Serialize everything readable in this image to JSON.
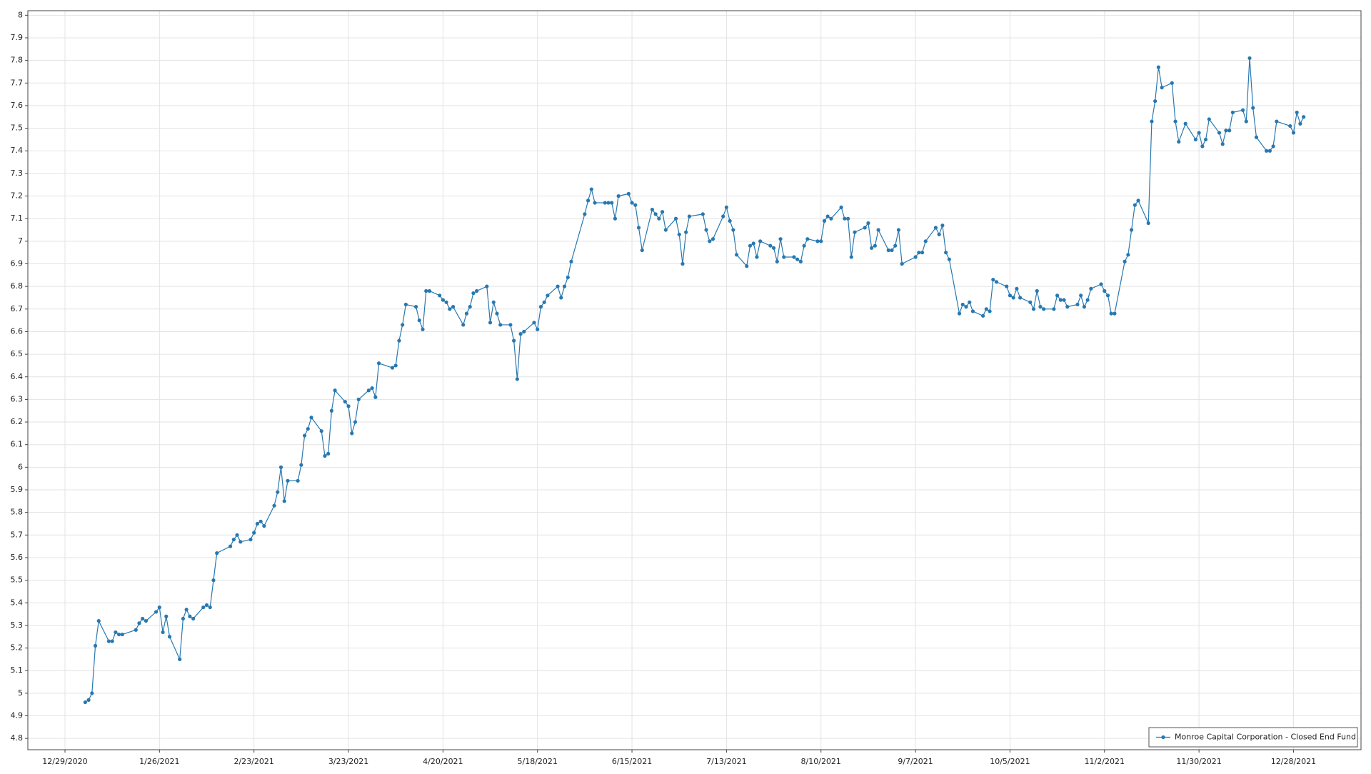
{
  "chart_data": {
    "type": "line",
    "x": [
      "1/4/2021",
      "1/5/2021",
      "1/6/2021",
      "1/7/2021",
      "1/8/2021",
      "1/11/2021",
      "1/12/2021",
      "1/13/2021",
      "1/14/2021",
      "1/15/2021",
      "1/19/2021",
      "1/20/2021",
      "1/21/2021",
      "1/22/2021",
      "1/25/2021",
      "1/26/2021",
      "1/27/2021",
      "1/28/2021",
      "1/29/2021",
      "2/1/2021",
      "2/2/2021",
      "2/3/2021",
      "2/4/2021",
      "2/5/2021",
      "2/8/2021",
      "2/9/2021",
      "2/10/2021",
      "2/11/2021",
      "2/12/2021",
      "2/16/2021",
      "2/17/2021",
      "2/18/2021",
      "2/19/2021",
      "2/22/2021",
      "2/23/2021",
      "2/24/2021",
      "2/25/2021",
      "2/26/2021",
      "3/1/2021",
      "3/2/2021",
      "3/3/2021",
      "3/4/2021",
      "3/5/2021",
      "3/8/2021",
      "3/9/2021",
      "3/10/2021",
      "3/11/2021",
      "3/12/2021",
      "3/15/2021",
      "3/16/2021",
      "3/17/2021",
      "3/18/2021",
      "3/19/2021",
      "3/22/2021",
      "3/23/2021",
      "3/24/2021",
      "3/25/2021",
      "3/26/2021",
      "3/29/2021",
      "3/30/2021",
      "3/31/2021",
      "4/1/2021",
      "4/5/2021",
      "4/6/2021",
      "4/7/2021",
      "4/8/2021",
      "4/9/2021",
      "4/12/2021",
      "4/13/2021",
      "4/14/2021",
      "4/15/2021",
      "4/16/2021",
      "4/19/2021",
      "4/20/2021",
      "4/21/2021",
      "4/22/2021",
      "4/23/2021",
      "4/26/2021",
      "4/27/2021",
      "4/28/2021",
      "4/29/2021",
      "4/30/2021",
      "5/3/2021",
      "5/4/2021",
      "5/5/2021",
      "5/6/2021",
      "5/7/2021",
      "5/10/2021",
      "5/11/2021",
      "5/12/2021",
      "5/13/2021",
      "5/14/2021",
      "5/17/2021",
      "5/18/2021",
      "5/19/2021",
      "5/20/2021",
      "5/21/2021",
      "5/24/2021",
      "5/25/2021",
      "5/26/2021",
      "5/27/2021",
      "5/28/2021",
      "6/1/2021",
      "6/2/2021",
      "6/3/2021",
      "6/4/2021",
      "6/7/2021",
      "6/8/2021",
      "6/9/2021",
      "6/10/2021",
      "6/11/2021",
      "6/14/2021",
      "6/15/2021",
      "6/16/2021",
      "6/17/2021",
      "6/18/2021",
      "6/21/2021",
      "6/22/2021",
      "6/23/2021",
      "6/24/2021",
      "6/25/2021",
      "6/28/2021",
      "6/29/2021",
      "6/30/2021",
      "7/1/2021",
      "7/2/2021",
      "7/6/2021",
      "7/7/2021",
      "7/8/2021",
      "7/9/2021",
      "7/12/2021",
      "7/13/2021",
      "7/14/2021",
      "7/15/2021",
      "7/16/2021",
      "7/19/2021",
      "7/20/2021",
      "7/21/2021",
      "7/22/2021",
      "7/23/2021",
      "7/26/2021",
      "7/27/2021",
      "7/28/2021",
      "7/29/2021",
      "7/30/2021",
      "8/2/2021",
      "8/3/2021",
      "8/4/2021",
      "8/5/2021",
      "8/6/2021",
      "8/9/2021",
      "8/10/2021",
      "8/11/2021",
      "8/12/2021",
      "8/13/2021",
      "8/16/2021",
      "8/17/2021",
      "8/18/2021",
      "8/19/2021",
      "8/20/2021",
      "8/23/2021",
      "8/24/2021",
      "8/25/2021",
      "8/26/2021",
      "8/27/2021",
      "8/30/2021",
      "8/31/2021",
      "9/1/2021",
      "9/2/2021",
      "9/3/2021",
      "9/7/2021",
      "9/8/2021",
      "9/9/2021",
      "9/10/2021",
      "9/13/2021",
      "9/14/2021",
      "9/15/2021",
      "9/16/2021",
      "9/17/2021",
      "9/20/2021",
      "9/21/2021",
      "9/22/2021",
      "9/23/2021",
      "9/24/2021",
      "9/27/2021",
      "9/28/2021",
      "9/29/2021",
      "9/30/2021",
      "10/1/2021",
      "10/4/2021",
      "10/5/2021",
      "10/6/2021",
      "10/7/2021",
      "10/8/2021",
      "10/11/2021",
      "10/12/2021",
      "10/13/2021",
      "10/14/2021",
      "10/15/2021",
      "10/18/2021",
      "10/19/2021",
      "10/20/2021",
      "10/21/2021",
      "10/22/2021",
      "10/25/2021",
      "10/26/2021",
      "10/27/2021",
      "10/28/2021",
      "10/29/2021",
      "11/1/2021",
      "11/2/2021",
      "11/3/2021",
      "11/4/2021",
      "11/5/2021",
      "11/8/2021",
      "11/9/2021",
      "11/10/2021",
      "11/11/2021",
      "11/12/2021",
      "11/15/2021",
      "11/16/2021",
      "11/17/2021",
      "11/18/2021",
      "11/19/2021",
      "11/22/2021",
      "11/23/2021",
      "11/24/2021",
      "11/26/2021",
      "11/29/2021",
      "11/30/2021",
      "12/1/2021",
      "12/2/2021",
      "12/3/2021",
      "12/6/2021",
      "12/7/2021",
      "12/8/2021",
      "12/9/2021",
      "12/10/2021",
      "12/13/2021",
      "12/14/2021",
      "12/15/2021",
      "12/16/2021",
      "12/17/2021",
      "12/20/2021",
      "12/21/2021",
      "12/22/2021",
      "12/23/2021",
      "12/27/2021",
      "12/28/2021",
      "12/29/2021",
      "12/30/2021",
      "12/31/2021"
    ],
    "series": [
      {
        "name": "Monroe Capital Corporation - Closed End Fund",
        "color": "#2878b0",
        "values": [
          4.96,
          4.97,
          5.0,
          5.21,
          5.32,
          5.23,
          5.23,
          5.27,
          5.26,
          5.26,
          5.28,
          5.31,
          5.33,
          5.32,
          5.36,
          5.38,
          5.27,
          5.34,
          5.25,
          5.15,
          5.33,
          5.37,
          5.34,
          5.33,
          5.38,
          5.39,
          5.38,
          5.5,
          5.62,
          5.65,
          5.68,
          5.7,
          5.67,
          5.68,
          5.71,
          5.75,
          5.76,
          5.74,
          5.83,
          5.89,
          6.0,
          5.85,
          5.94,
          5.94,
          6.01,
          6.14,
          6.17,
          6.22,
          6.16,
          6.05,
          6.06,
          6.25,
          6.34,
          6.29,
          6.27,
          6.15,
          6.2,
          6.3,
          6.34,
          6.35,
          6.31,
          6.46,
          6.44,
          6.45,
          6.56,
          6.63,
          6.72,
          6.71,
          6.65,
          6.61,
          6.78,
          6.78,
          6.76,
          6.74,
          6.73,
          6.7,
          6.71,
          6.63,
          6.68,
          6.71,
          6.77,
          6.78,
          6.8,
          6.64,
          6.73,
          6.68,
          6.63,
          6.63,
          6.56,
          6.39,
          6.59,
          6.6,
          6.64,
          6.61,
          6.71,
          6.73,
          6.76,
          6.8,
          6.75,
          6.8,
          6.84,
          6.91,
          7.12,
          7.18,
          7.23,
          7.17,
          7.17,
          7.17,
          7.17,
          7.1,
          7.2,
          7.21,
          7.17,
          7.16,
          7.06,
          6.96,
          7.14,
          7.12,
          7.1,
          7.13,
          7.05,
          7.1,
          7.03,
          6.9,
          7.04,
          7.11,
          7.12,
          7.05,
          7.0,
          7.01,
          7.11,
          7.15,
          7.09,
          7.05,
          6.94,
          6.89,
          6.98,
          6.99,
          6.93,
          7.0,
          6.98,
          6.97,
          6.91,
          7.01,
          6.93,
          6.93,
          6.92,
          6.91,
          6.98,
          7.01,
          7.0,
          7.0,
          7.09,
          7.11,
          7.1,
          7.15,
          7.1,
          7.1,
          6.93,
          7.04,
          7.06,
          7.08,
          6.97,
          6.98,
          7.05,
          6.96,
          6.96,
          6.98,
          7.05,
          6.9,
          6.93,
          6.95,
          6.95,
          7.0,
          7.06,
          7.03,
          7.07,
          6.95,
          6.92,
          6.68,
          6.72,
          6.71,
          6.73,
          6.69,
          6.67,
          6.7,
          6.69,
          6.83,
          6.82,
          6.8,
          6.76,
          6.75,
          6.79,
          6.75,
          6.73,
          6.7,
          6.78,
          6.71,
          6.7,
          6.7,
          6.76,
          6.74,
          6.74,
          6.71,
          6.72,
          6.76,
          6.71,
          6.74,
          6.79,
          6.81,
          6.78,
          6.76,
          6.68,
          6.68,
          6.91,
          6.94,
          7.05,
          7.16,
          7.18,
          7.08,
          7.53,
          7.62,
          7.77,
          7.68,
          7.7,
          7.53,
          7.44,
          7.52,
          7.45,
          7.48,
          7.42,
          7.45,
          7.54,
          7.48,
          7.43,
          7.49,
          7.49,
          7.57,
          7.58,
          7.53,
          7.81,
          7.59,
          7.46,
          7.4,
          7.4,
          7.42,
          7.53,
          7.51,
          7.48,
          7.57,
          7.52,
          7.55
        ]
      }
    ],
    "xlim": [
      "12/18/2020",
      "1/17/2022"
    ],
    "xticks": [
      "12/29/2020",
      "1/26/2021",
      "2/23/2021",
      "3/23/2021",
      "4/20/2021",
      "5/18/2021",
      "6/15/2021",
      "7/13/2021",
      "8/10/2021",
      "9/7/2021",
      "10/5/2021",
      "11/2/2021",
      "11/30/2021",
      "12/28/2021"
    ],
    "ylim": [
      4.75,
      8.02
    ],
    "yticks": [
      4.8,
      4.9,
      5,
      5.1,
      5.2,
      5.3,
      5.4,
      5.5,
      5.6,
      5.7,
      5.8,
      5.9,
      6,
      6.1,
      6.2,
      6.3,
      6.4,
      6.5,
      6.6,
      6.7,
      6.8,
      6.9,
      7,
      7.1,
      7.2,
      7.3,
      7.4,
      7.5,
      7.6,
      7.7,
      7.8,
      7.9,
      8
    ],
    "grid": true,
    "legend": "lower right"
  }
}
